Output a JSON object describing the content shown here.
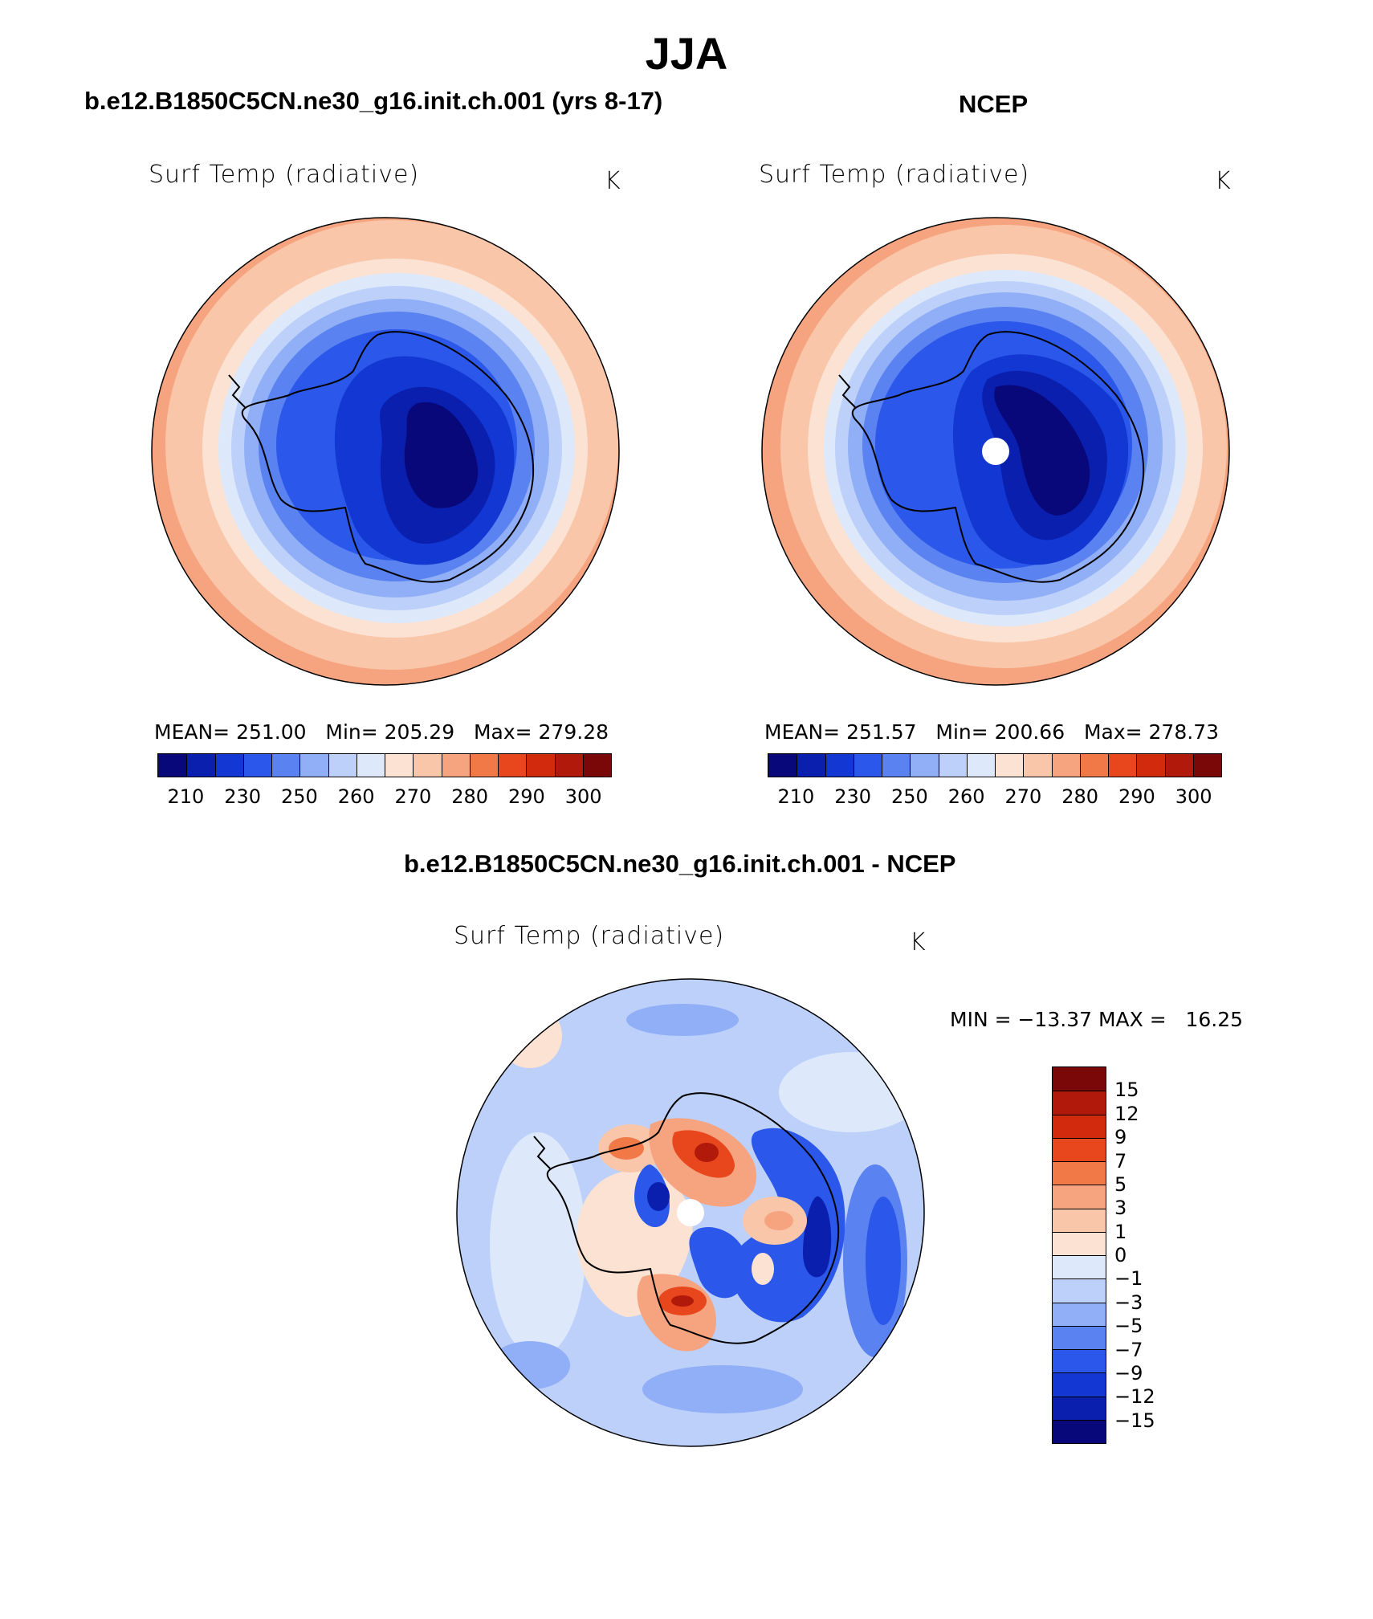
{
  "main_title": "JJA",
  "panels": [
    {
      "title": "b.e12.B1850C5CN.ne30_g16.init.ch.001 (yrs 8-17)",
      "variable": "Surf Temp (radiative)",
      "units": "K",
      "stats": "MEAN= 251.00   Min= 205.29   Max= 279.28",
      "colorbar_ticks": [
        "210",
        "230",
        "250",
        "260",
        "270",
        "280",
        "290",
        "300"
      ]
    },
    {
      "title": "NCEP",
      "variable": "Surf Temp (radiative)",
      "units": "K",
      "stats": "MEAN= 251.57   Min= 200.66   Max= 278.73",
      "colorbar_ticks": [
        "210",
        "230",
        "250",
        "260",
        "270",
        "280",
        "290",
        "300"
      ]
    },
    {
      "title": "b.e12.B1850C5CN.ne30_g16.init.ch.001 - NCEP",
      "variable": "Surf Temp (radiative)",
      "units": "K",
      "stats": "MIN = −13.37 MAX =   16.25",
      "colorbar_ticks": [
        "15",
        "12",
        "9",
        "7",
        "5",
        "3",
        "1",
        "0",
        "−1",
        "−3",
        "−5",
        "−7",
        "−9",
        "−12",
        "−15"
      ]
    }
  ],
  "colors": {
    "abs_scale": [
      "#08087a",
      "#0a1fae",
      "#1237d2",
      "#2b58ea",
      "#5a82f0",
      "#90aff6",
      "#bcd0fa",
      "#dde9fb",
      "#fbe2d2",
      "#f9c6aa",
      "#f6a47f",
      "#f17847",
      "#e8461c",
      "#d22a0d",
      "#b1190b",
      "#7a0808"
    ],
    "diff_scale": [
      "#08087a",
      "#0a1fae",
      "#1237d2",
      "#2b58ea",
      "#5a82f0",
      "#90aff6",
      "#bcd0fa",
      "#dde9fb",
      "#fbe2d2",
      "#f9c6aa",
      "#f6a47f",
      "#f17847",
      "#e8461c",
      "#d22a0d",
      "#b1190b",
      "#7a0808"
    ]
  }
}
